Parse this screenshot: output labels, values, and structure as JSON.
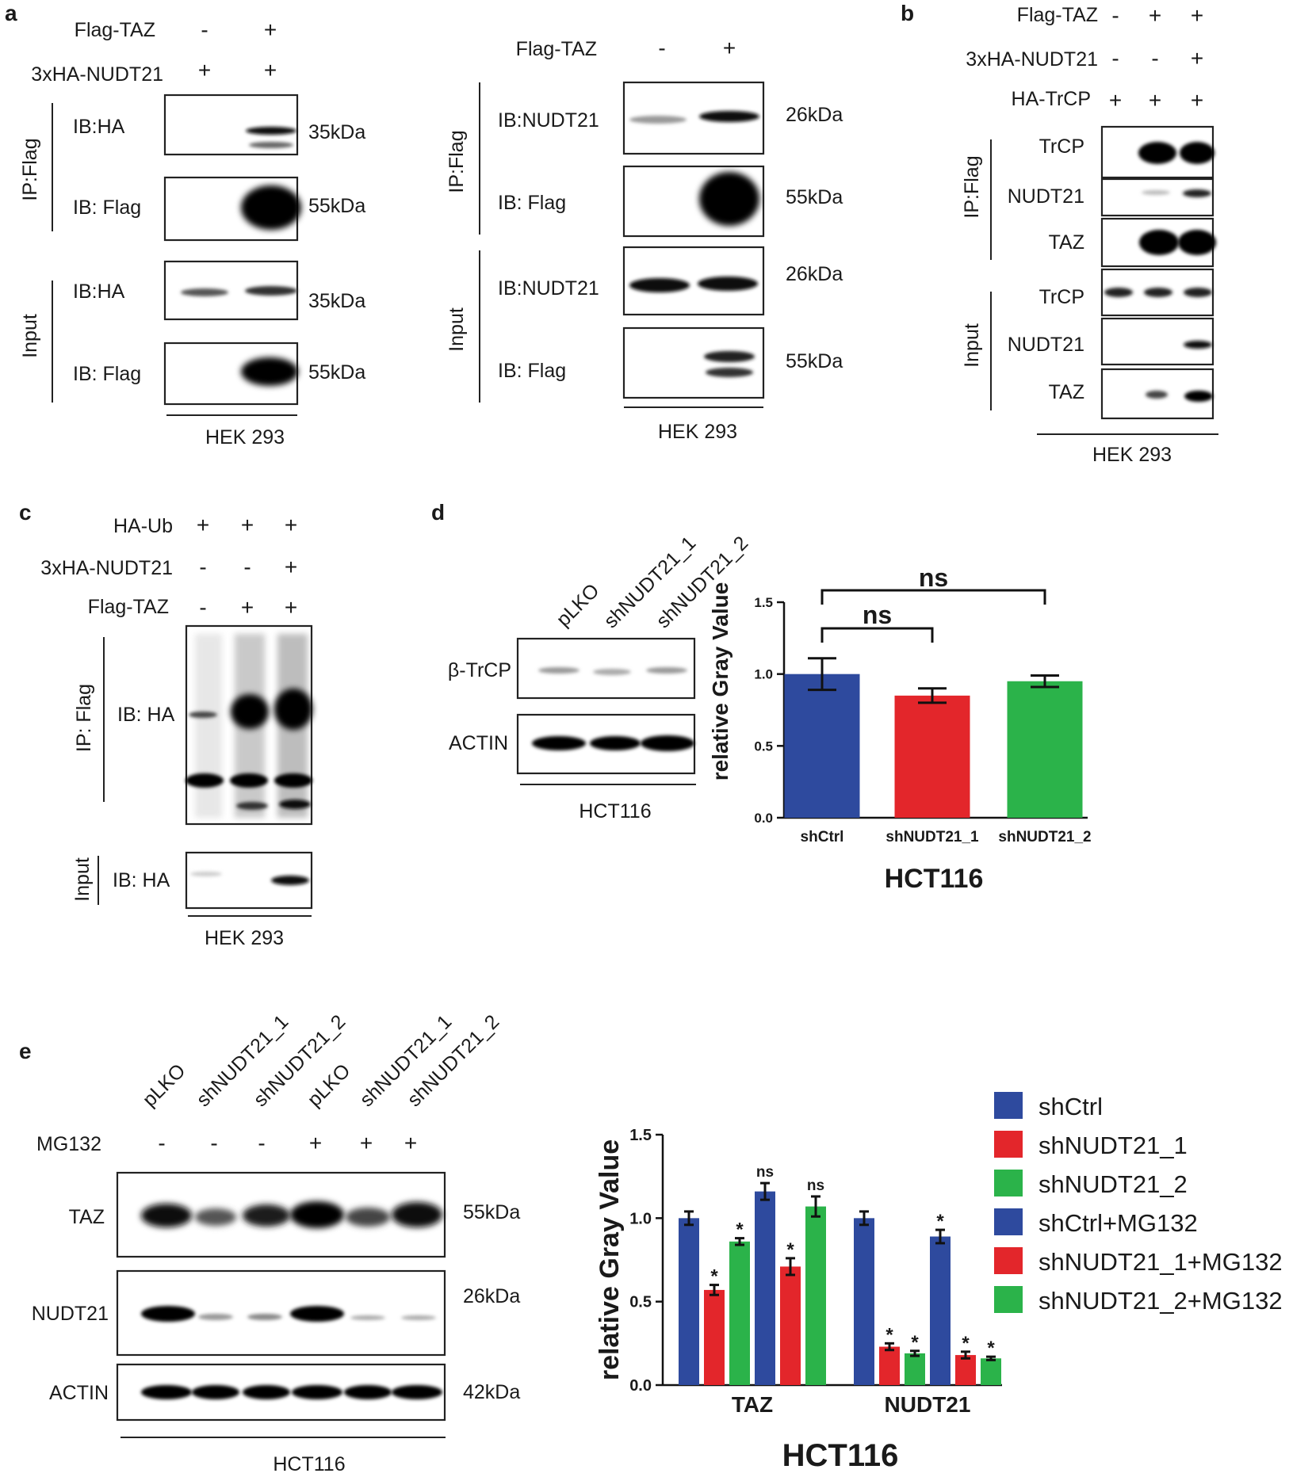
{
  "panel_a": {
    "letter": "a",
    "left": {
      "conditions": [
        {
          "label": "Flag-TAZ",
          "values": [
            "-",
            "+"
          ]
        },
        {
          "label": "3xHA-NUDT21",
          "values": [
            "+",
            "+"
          ]
        }
      ],
      "blots": [
        {
          "group": "IP:Flag",
          "ib": "IB:HA",
          "kda": "35kDa"
        },
        {
          "group": "IP:Flag",
          "ib": "IB: Flag",
          "kda": "55kDa"
        },
        {
          "group": "Input",
          "ib": "IB:HA",
          "kda": "35kDa"
        },
        {
          "group": "Input",
          "ib": "IB: Flag",
          "kda": "55kDa"
        }
      ],
      "group_labels": [
        "IP:Flag",
        "Input"
      ],
      "cell_line": "HEK 293"
    },
    "right": {
      "conditions": [
        {
          "label": "Flag-TAZ",
          "values": [
            "-",
            "+"
          ]
        }
      ],
      "blots": [
        {
          "ib": "IB:NUDT21",
          "kda": "26kDa"
        },
        {
          "ib": "IB: Flag",
          "kda": "55kDa"
        },
        {
          "ib": "IB:NUDT21",
          "kda": "26kDa"
        },
        {
          "ib": "IB: Flag",
          "kda": "55kDa"
        }
      ],
      "group_labels": [
        "IP:Flag",
        "Input"
      ],
      "cell_line": "HEK 293"
    }
  },
  "panel_b": {
    "letter": "b",
    "conditions": [
      {
        "label": "Flag-TAZ",
        "values": [
          "-",
          "+",
          "+"
        ]
      },
      {
        "label": "3xHA-NUDT21",
        "values": [
          "-",
          "-",
          "+"
        ]
      },
      {
        "label": "HA-TrCP",
        "values": [
          "+",
          "+",
          "+"
        ]
      }
    ],
    "blots": [
      "TrCP",
      "NUDT21",
      "TAZ",
      "TrCP",
      "NUDT21",
      "TAZ"
    ],
    "group_labels": [
      "IP:Flag",
      "Input"
    ],
    "cell_line": "HEK 293"
  },
  "panel_c": {
    "letter": "c",
    "conditions": [
      {
        "label": "HA-Ub",
        "values": [
          "+",
          "+",
          "+"
        ]
      },
      {
        "label": "3xHA-NUDT21",
        "values": [
          "-",
          "-",
          "+"
        ]
      },
      {
        "label": "Flag-TAZ",
        "values": [
          "-",
          "+",
          "+"
        ]
      }
    ],
    "blots": [
      {
        "group": "IP: Flag",
        "ib": "IB: HA"
      },
      {
        "group": "Input",
        "ib": "IB: HA"
      }
    ],
    "cell_line": "HEK 293"
  },
  "panel_d": {
    "letter": "d",
    "lanes": [
      "pLKO",
      "shNUDT21_1",
      "shNUDT21_2"
    ],
    "blots": [
      "β-TrCP",
      "ACTIN"
    ],
    "cell_line": "HCT116"
  },
  "panel_e": {
    "letter": "e",
    "lanes": [
      "pLKO",
      "shNUDT21_1",
      "shNUDT21_2",
      "pLKO",
      "shNUDT21_1",
      "shNUDT21_2"
    ],
    "treatment": {
      "label": "MG132",
      "values": [
        "-",
        "-",
        "-",
        "+",
        "+",
        "+"
      ]
    },
    "blots": [
      {
        "name": "TAZ",
        "kda": "55kDa"
      },
      {
        "name": "NUDT21",
        "kda": "26kDa"
      },
      {
        "name": "ACTIN",
        "kda": "42kDa"
      }
    ],
    "cell_line": "HCT116"
  },
  "chart_data": [
    {
      "type": "bar",
      "panel": "d",
      "categories": [
        "shCtrl",
        "shNUDT21_1",
        "shNUDT21_2"
      ],
      "values": [
        1.0,
        0.85,
        0.95
      ],
      "errors": [
        0.11,
        0.05,
        0.04
      ],
      "colors": [
        "#2e4a9e",
        "#e3262b",
        "#2bb34a"
      ],
      "title": "HCT116",
      "xlabel": "",
      "ylabel": "relative Gray Value",
      "ylim": [
        0,
        1.5
      ],
      "yticks": [
        "0.0",
        "0.5",
        "1.0",
        "1.5"
      ],
      "annotations": [
        {
          "text": "ns",
          "from": "shCtrl",
          "to": "shNUDT21_1"
        },
        {
          "text": "ns",
          "from": "shCtrl",
          "to": "shNUDT21_2"
        }
      ]
    },
    {
      "type": "bar",
      "panel": "e",
      "categories": [
        "TAZ",
        "NUDT21"
      ],
      "series": [
        {
          "name": "shCtrl",
          "color": "#2e4a9e",
          "values": [
            1.0,
            1.0
          ],
          "errors": [
            0.04,
            0.04
          ],
          "marks": [
            "",
            ""
          ]
        },
        {
          "name": "shNUDT21_1",
          "color": "#e3262b",
          "values": [
            0.57,
            0.23
          ],
          "errors": [
            0.03,
            0.02
          ],
          "marks": [
            "*",
            "*"
          ]
        },
        {
          "name": "shNUDT21_2",
          "color": "#2bb34a",
          "values": [
            0.86,
            0.19
          ],
          "errors": [
            0.02,
            0.015
          ],
          "marks": [
            "*",
            "*"
          ]
        },
        {
          "name": "shCtrl+MG132",
          "color": "#2e4a9e",
          "values": [
            1.16,
            0.89
          ],
          "errors": [
            0.05,
            0.04
          ],
          "marks": [
            "ns",
            "*"
          ]
        },
        {
          "name": "shNUDT21_1+MG132",
          "color": "#e3262b",
          "values": [
            0.71,
            0.18
          ],
          "errors": [
            0.05,
            0.02
          ],
          "marks": [
            "*",
            "*"
          ]
        },
        {
          "name": "shNUDT21_2+MG132",
          "color": "#2bb34a",
          "values": [
            1.07,
            0.16
          ],
          "errors": [
            0.06,
            0.01
          ],
          "marks": [
            "ns",
            "*"
          ]
        }
      ],
      "title": "HCT116",
      "xlabel": "",
      "ylabel": "relative Gray Value",
      "ylim": [
        0,
        1.5
      ],
      "yticks": [
        "0.0",
        "0.5",
        "1.0",
        "1.5"
      ],
      "legend": "right"
    }
  ]
}
